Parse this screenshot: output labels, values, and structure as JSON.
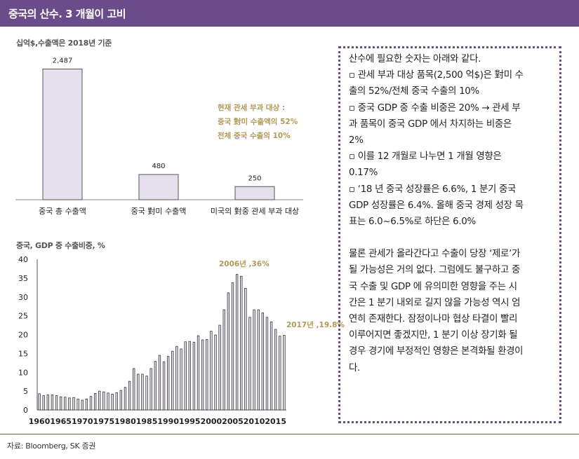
{
  "page_title": "중국의 산수. 3 개월이 고비",
  "source": "자료: Bloomberg, SK 증권",
  "text_lines": [
    "산수에 필요한 숫자는 아래와 같다.",
    "▫ 관세 부과 대상 품목(2,500 억$)은 對미 수",
    "출의 52%/전체 중국 수출의 10%",
    "▫ 중국 GDP 중 수출 비중은 20% → 관세 부",
    "과 품목이 중국 GDP 에서 차지하는 비중은",
    "2%",
    "▫ 이를 12 개월로 나누면 1 개월 영향은",
    "0.17%",
    "▫ ‘18 년 중국 성장률은 6.6%, 1 분기 중국",
    "GDP 성장률은 6.4%. 올해 중국 경제 성장 목",
    "표는 6.0~6.5%로 하단은 6.0%",
    "",
    "물론 관세가 올라간다고 수출이 당장 ‘제로’가",
    "될 가능성은 거의 없다. 그럼에도 불구하고 중",
    "국 수출 및 GDP 에 유의미한 영향을 주는 시",
    "간은 1 분기 내외로 길지 않을 가능성 역시 엄",
    "연히 존재한다. 잠정이나마 협상 타결이 빨리",
    "이루어지면 좋겠지만, 1 분기 이상 장기화 될",
    "경우 경기에 부정적인 영향은 본격화될 환경이",
    "다."
  ],
  "chart_data": [
    {
      "type": "bar",
      "title": "십억$,수출액은 2018년 기준",
      "categories": [
        "중국 총 수출액",
        "중국 對미 수출액",
        "미국의 對중 관세 부과 대상"
      ],
      "values": [
        2487,
        480,
        250
      ],
      "data_labels": [
        "2,487",
        "480",
        "250"
      ],
      "ylim": [
        0,
        2800
      ],
      "bar_color": "#e6e0ee",
      "annotation": [
        "현재 관세 부과 대상 :",
        "중국 對미 수출액의 52%",
        "전체 중국 수출의 10%"
      ]
    },
    {
      "type": "bar",
      "title": "중국, GDP 중 수출비중, %",
      "x": [
        1960,
        1961,
        1962,
        1963,
        1964,
        1965,
        1966,
        1967,
        1968,
        1969,
        1970,
        1971,
        1972,
        1973,
        1974,
        1975,
        1976,
        1977,
        1978,
        1979,
        1980,
        1981,
        1982,
        1983,
        1984,
        1985,
        1986,
        1987,
        1988,
        1989,
        1990,
        1991,
        1992,
        1993,
        1994,
        1995,
        1996,
        1997,
        1998,
        1999,
        2000,
        2001,
        2002,
        2003,
        2004,
        2005,
        2006,
        2007,
        2008,
        2009,
        2010,
        2011,
        2012,
        2013,
        2014,
        2015,
        2016,
        2017
      ],
      "values": [
        4.3,
        3.8,
        4.0,
        4.0,
        3.8,
        3.5,
        3.4,
        3.2,
        3.3,
        2.9,
        2.6,
        2.9,
        3.6,
        4.4,
        5.0,
        4.8,
        4.5,
        4.2,
        4.6,
        5.2,
        6.0,
        7.6,
        11.0,
        9.5,
        9.5,
        9.0,
        11.0,
        12.9,
        14.5,
        12.8,
        14.2,
        15.6,
        16.9,
        16.2,
        18.1,
        18.2,
        18.0,
        19.7,
        18.6,
        18.7,
        20.9,
        19.9,
        22.5,
        26.6,
        31.1,
        33.8,
        36.0,
        35.5,
        32.3,
        24.6,
        26.6,
        26.6,
        25.8,
        24.6,
        23.4,
        21.4,
        19.6,
        19.8
      ],
      "ylim": [
        0,
        40
      ],
      "yticks": [
        0,
        5,
        10,
        15,
        20,
        25,
        30,
        35,
        40
      ],
      "xticks": [
        1960,
        1965,
        1970,
        1975,
        1980,
        1985,
        1990,
        1995,
        2000,
        2005,
        2010,
        2015
      ],
      "annotations": [
        "2006년 ,36%",
        "2017년 ,19.8%"
      ],
      "bar_color": "#e6e0ee"
    }
  ]
}
